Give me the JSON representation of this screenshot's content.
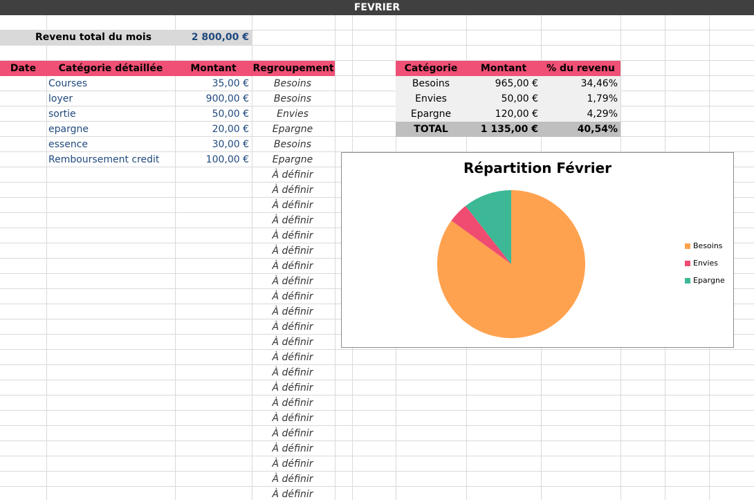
{
  "sheet_title": "FEVRIER",
  "revenue": {
    "label": "Revenu total du mois",
    "value": "2 800,00 €"
  },
  "main_headers": {
    "date": "Date",
    "category": "Catégorie détaillée",
    "amount": "Montant",
    "group": "Regroupement"
  },
  "entries": [
    {
      "category": "Courses",
      "amount": "35,00 €",
      "group": "Besoins"
    },
    {
      "category": "loyer",
      "amount": "900,00 €",
      "group": "Besoins"
    },
    {
      "category": "sortie",
      "amount": "50,00 €",
      "group": "Envies"
    },
    {
      "category": "epargne",
      "amount": "20,00 €",
      "group": "Epargne"
    },
    {
      "category": "essence",
      "amount": "30,00 €",
      "group": "Besoins"
    },
    {
      "category": "Remboursement credit",
      "amount": "100,00 €",
      "group": "Epargne"
    }
  ],
  "undefined_group_label": "À définir",
  "summary_headers": {
    "category": "Catégorie",
    "amount": "Montant",
    "percent": "% du revenu"
  },
  "summary_rows": [
    {
      "category": "Besoins",
      "amount": "965,00 €",
      "percent": "34,46%"
    },
    {
      "category": "Envies",
      "amount": "50,00 €",
      "percent": "1,79%"
    },
    {
      "category": "Epargne",
      "amount": "120,00 €",
      "percent": "4,29%"
    }
  ],
  "summary_total": {
    "category": "TOTAL",
    "amount": "1 135,00 €",
    "percent": "40,54%"
  },
  "chart_data": {
    "type": "pie",
    "title": "Répartition Février",
    "categories": [
      "Besoins",
      "Envies",
      "Epargne"
    ],
    "values": [
      965,
      50,
      120
    ],
    "colors": [
      "#ffa24f",
      "#f04c72",
      "#3cb896"
    ],
    "legend": "right"
  }
}
